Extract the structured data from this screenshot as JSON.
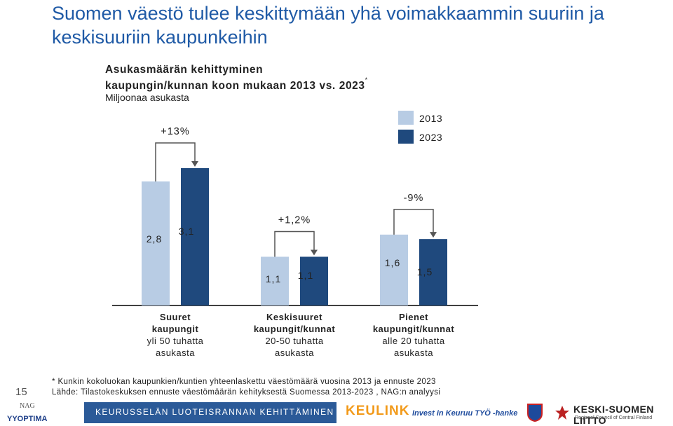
{
  "title": "Suomen väestö tulee keskittymään yhä voimakkaammin suuriin ja keskisuuriin kaupunkeihin",
  "subtitle_line1": "Asukasmäärän kehittyminen",
  "subtitle_line2": "kaupungin/kunnan koon mukaan 2013 vs. 2023",
  "subtitle_marker": "*",
  "unit": "Miljoonaa asukasta",
  "colors": {
    "y2013": "#b8cce4",
    "y2023": "#1f497d",
    "title": "#1f5aa6"
  },
  "chart_data": {
    "type": "bar",
    "categories": [
      {
        "name": "Suuret kaupungit",
        "desc_line1": "yli 50 tuhatta",
        "desc_line2": "asukasta"
      },
      {
        "name": "Keskisuuret kaupungit/kunnat",
        "desc_line1": "20-50 tuhatta",
        "desc_line2": "asukasta"
      },
      {
        "name": "Pienet kaupungit/kunnat",
        "desc_line1": "alle 20 tuhatta",
        "desc_line2": "asukasta"
      }
    ],
    "category_name_lines": [
      [
        "Suuret",
        "kaupungit"
      ],
      [
        "Keskisuuret",
        "kaupungit/kunnat"
      ],
      [
        "Pienet",
        "kaupungit/kunnat"
      ]
    ],
    "series": [
      {
        "name": "2013",
        "values": [
          2.8,
          1.1,
          1.6
        ],
        "labels": [
          "2,8",
          "1,1",
          "1,6"
        ]
      },
      {
        "name": "2023",
        "values": [
          3.1,
          1.1,
          1.5
        ],
        "labels": [
          "3,1",
          "1,1",
          "1,5"
        ]
      }
    ],
    "changes": [
      "+13%",
      "+1,2%",
      "-9%"
    ],
    "legend": [
      "2013",
      "2023"
    ],
    "legend_position": "top-right",
    "ylim": [
      0,
      3.1
    ]
  },
  "footnote_line1": "* Kunkin kokoluokan kaupunkien/kuntien yhteenlaskettu väestömäärä vuosina 2013 ja ennuste 2023",
  "footnote_line2": "Lähde: Tilastokeskuksen ennuste väestömäärän kehityksestä Suomessa 2013-2023 , NAG:n analyysi",
  "page_number": "15",
  "footer": {
    "project_text": "KEURUSSELÄN LUOTEISRANNAN KEHITTÄMINEN",
    "keulink": "KEULINK",
    "invest": "Invest in Keuruu TYÖ -hanke",
    "region_name": "KESKI-SUOMEN LIITTO",
    "region_sub": "Regional Council of Central Finland",
    "nag": "NAG",
    "optima": "YYOPTIMA"
  }
}
